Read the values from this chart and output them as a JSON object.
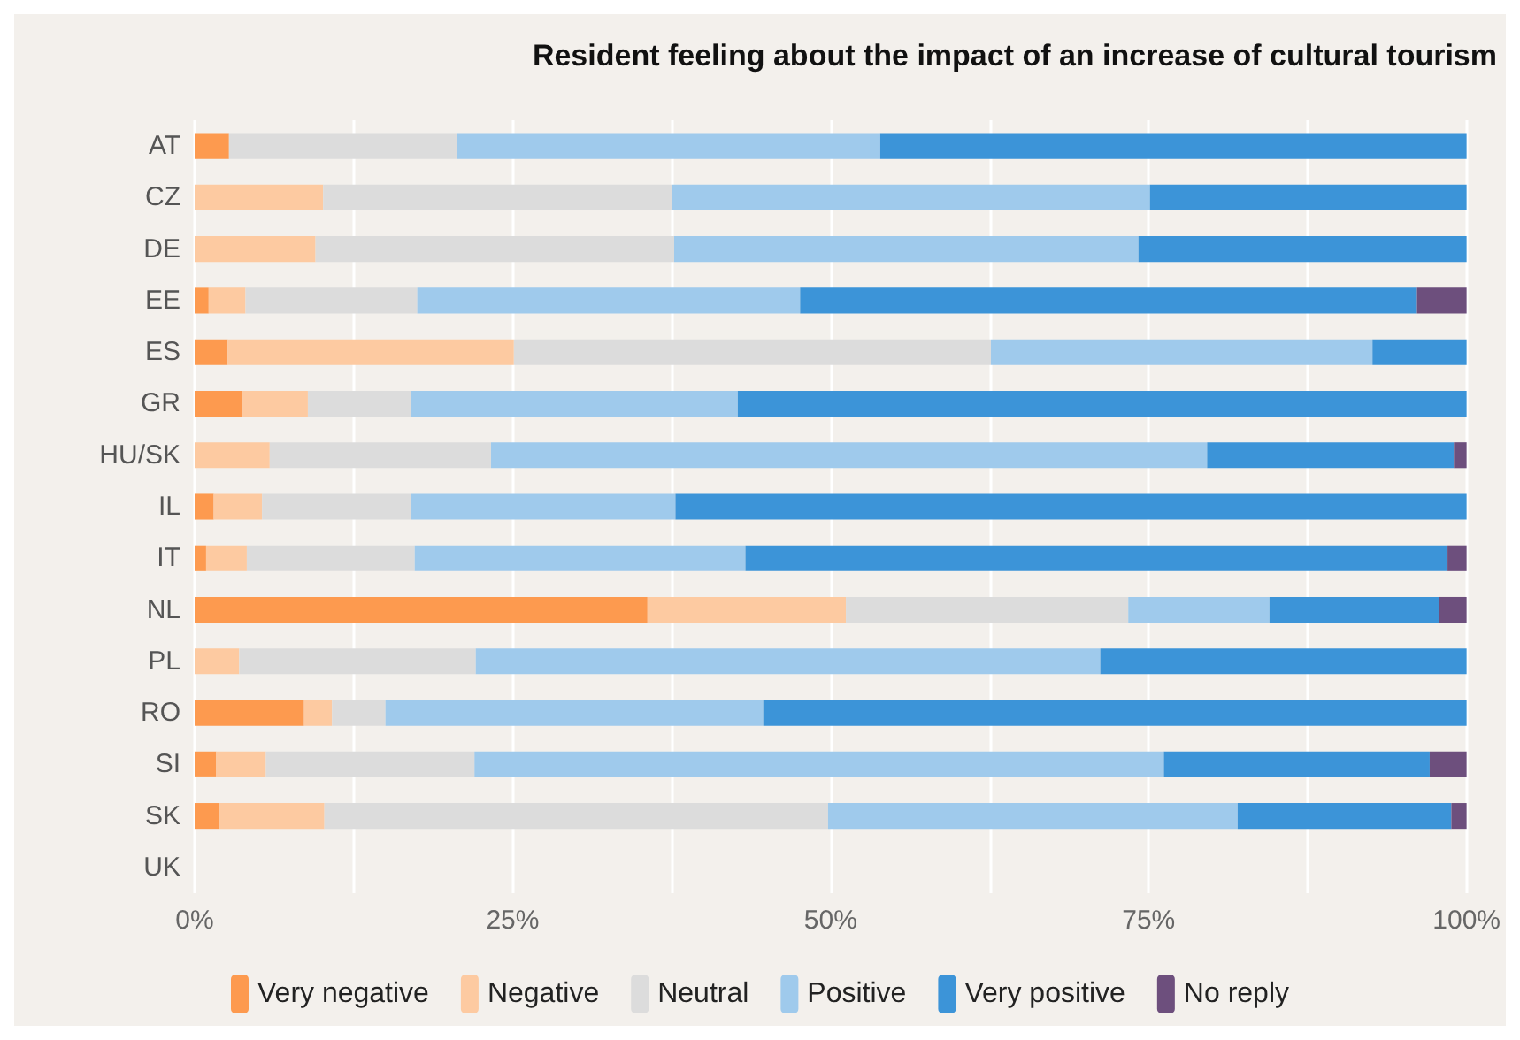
{
  "chart_data": {
    "type": "bar",
    "orientation": "horizontal",
    "stacked": true,
    "title": "Resident feeling about the impact of an increase of cultural tourism",
    "categories": [
      "AT",
      "CZ",
      "DE",
      "EE",
      "ES",
      "GR",
      "HU/SK",
      "IL",
      "IT",
      "NL",
      "PL",
      "RO",
      "SI",
      "SK",
      "UK"
    ],
    "series": [
      {
        "name": "Very negative",
        "color": "#fd9a4f",
        "values": [
          2.7,
          0,
          0,
          1.1,
          2.6,
          3.7,
          0,
          1.5,
          0.9,
          35.6,
          0,
          8.6,
          1.7,
          1.9,
          null
        ]
      },
      {
        "name": "Negative",
        "color": "#fdcaa1",
        "values": [
          0,
          10.1,
          9.5,
          2.9,
          22.5,
          5.2,
          5.9,
          3.8,
          3.2,
          15.6,
          3.5,
          2.2,
          3.9,
          8.3,
          null
        ]
      },
      {
        "name": "Neutral",
        "color": "#dcdcdc",
        "values": [
          17.9,
          27.4,
          28.2,
          13.5,
          37.5,
          8.1,
          17.4,
          11.7,
          13.2,
          22.2,
          18.6,
          4.2,
          16.4,
          39.6,
          null
        ]
      },
      {
        "name": "Positive",
        "color": "#9fcaec",
        "values": [
          33.3,
          37.6,
          36.5,
          30.1,
          30.0,
          25.7,
          56.3,
          20.8,
          26.0,
          11.1,
          49.1,
          29.7,
          54.2,
          32.2,
          null
        ]
      },
      {
        "name": "Very positive",
        "color": "#3c94d8",
        "values": [
          46.1,
          24.9,
          25.8,
          48.5,
          7.4,
          57.3,
          19.4,
          62.2,
          55.2,
          13.3,
          28.8,
          55.3,
          20.9,
          16.8,
          null
        ]
      },
      {
        "name": "No reply",
        "color": "#6d4f7d",
        "values": [
          0,
          0,
          0,
          3.9,
          0,
          0,
          1.0,
          0,
          1.5,
          2.2,
          0,
          0,
          2.9,
          1.2,
          null
        ]
      }
    ],
    "xlim": [
      0,
      100
    ],
    "xticks": [
      {
        "value": 0,
        "label": "0%"
      },
      {
        "value": 12.5,
        "label": null
      },
      {
        "value": 25,
        "label": "25%"
      },
      {
        "value": 37.5,
        "label": null
      },
      {
        "value": 50,
        "label": "50%"
      },
      {
        "value": 62.5,
        "label": null
      },
      {
        "value": 75,
        "label": "75%"
      },
      {
        "value": 87.5,
        "label": null
      },
      {
        "value": 100,
        "label": "100%"
      }
    ],
    "grid": "x",
    "legend": "bottom"
  }
}
